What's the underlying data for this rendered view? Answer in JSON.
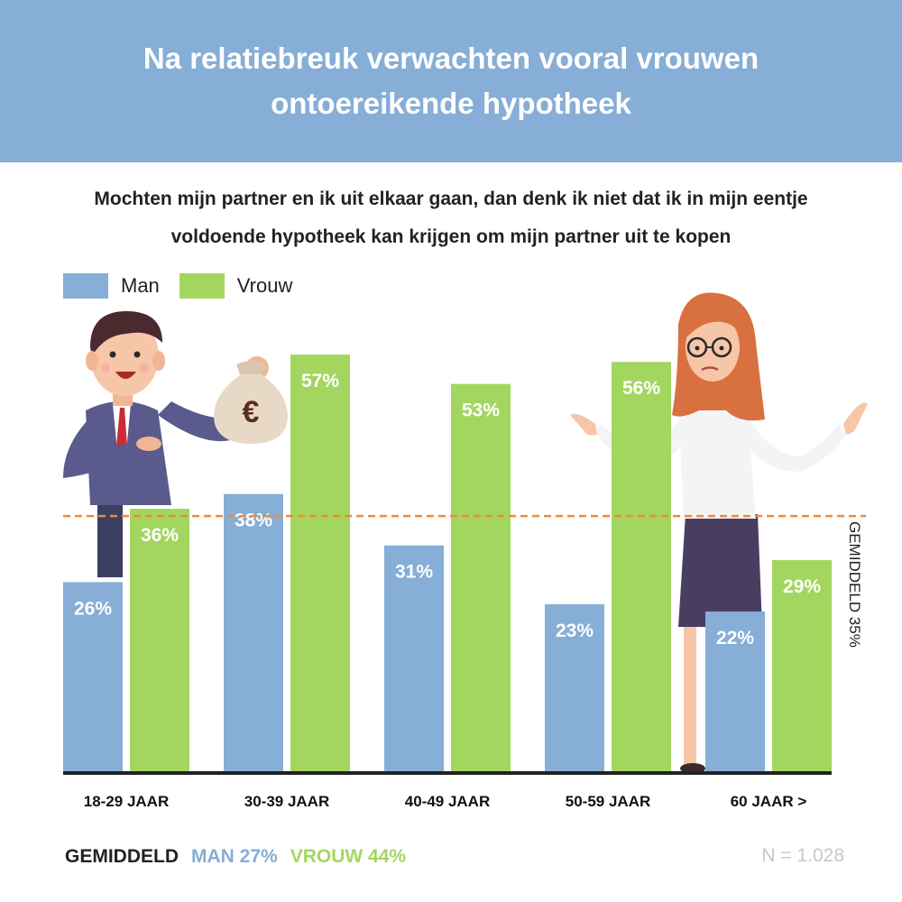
{
  "title": "Na relatiebreuk verwachten vooral vrouwen ontoereikende hypotheek",
  "subtitle": "Mochten mijn partner en ik uit elkaar gaan, dan denk ik niet dat ik in mijn eentje voldoende hypotheek kan krijgen om mijn partner uit te kopen",
  "legend": {
    "man": "Man",
    "vrouw": "Vrouw"
  },
  "colors": {
    "man": "#86aed6",
    "vrouw": "#a3d65f",
    "average_line": "#f28b30",
    "header": "#86aed6"
  },
  "chart_data": {
    "type": "bar",
    "categories": [
      "18-29 JAAR",
      "30-39 JAAR",
      "40-49 JAAR",
      "50-59 JAAR",
      "60 JAAR >"
    ],
    "series": [
      {
        "name": "Man",
        "values": [
          26,
          38,
          31,
          23,
          22
        ],
        "labels": [
          "26%",
          "38%",
          "31%",
          "23%",
          "22%"
        ]
      },
      {
        "name": "Vrouw",
        "values": [
          36,
          57,
          53,
          56,
          29
        ],
        "labels": [
          "36%",
          "57%",
          "53%",
          "56%",
          "29%"
        ]
      }
    ],
    "ylim": [
      0,
      65
    ],
    "reference_line": {
      "value": 35,
      "label": "GEMIDDELD 35%"
    },
    "legend_position": "top-left",
    "grid": false
  },
  "footer": {
    "prefix": "GEMIDDELD",
    "man": "MAN 27%",
    "vrouw": "VROUW 44%"
  },
  "sample_size": "N = 1.028",
  "illustrations": [
    "businessman-with-money-bag-illustration",
    "businesswoman-shrugging-illustration"
  ]
}
